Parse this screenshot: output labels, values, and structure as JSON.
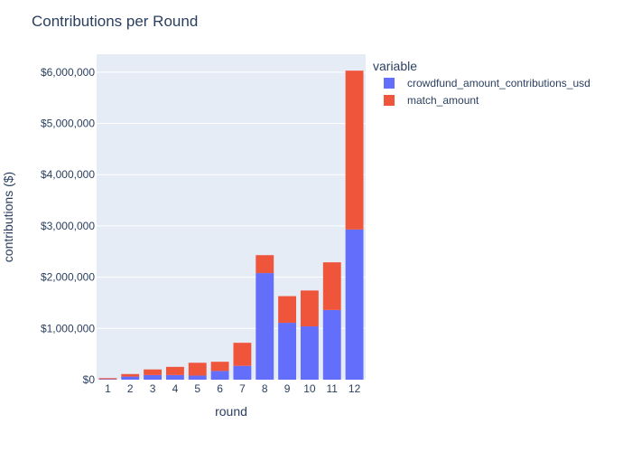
{
  "chart_data": {
    "type": "bar",
    "barmode": "stack",
    "title": "Contributions per Round",
    "xlabel": "round",
    "ylabel": "contributions ($)",
    "categories": [
      "1",
      "2",
      "3",
      "4",
      "5",
      "6",
      "7",
      "8",
      "9",
      "10",
      "11",
      "12"
    ],
    "series": [
      {
        "name": "crowdfund_amount_contributions_usd",
        "color": "#636efa",
        "values": [
          10000,
          60000,
          90000,
          90000,
          80000,
          170000,
          270000,
          2080000,
          1110000,
          1040000,
          1360000,
          2930000
        ]
      },
      {
        "name": "match_amount",
        "color": "#ef553b",
        "values": [
          20000,
          50000,
          110000,
          160000,
          250000,
          180000,
          450000,
          350000,
          520000,
          700000,
          930000,
          3100000
        ]
      }
    ],
    "ylim": [
      0,
      6350000
    ],
    "yticks": [
      0,
      1000000,
      2000000,
      3000000,
      4000000,
      5000000,
      6000000
    ],
    "ytick_labels": [
      "$0",
      "$1,000,000",
      "$2,000,000",
      "$3,000,000",
      "$4,000,000",
      "$5,000,000",
      "$6,000,000"
    ],
    "legend": {
      "title": "variable",
      "position": "right"
    },
    "grid": true,
    "plot_background": "#e5ecf6"
  }
}
